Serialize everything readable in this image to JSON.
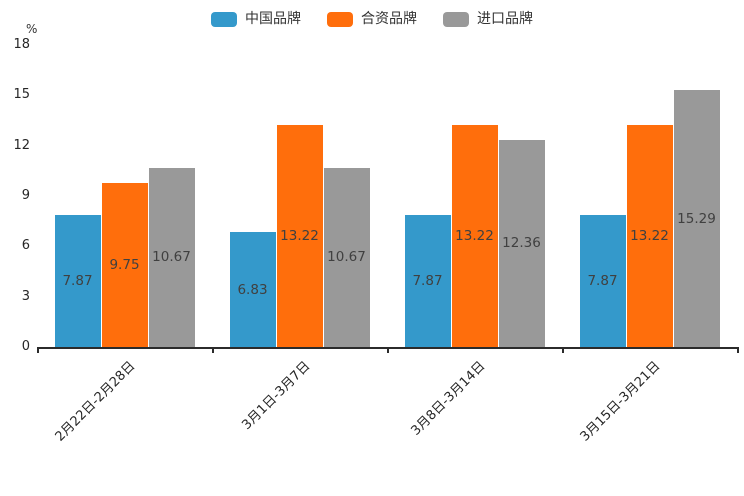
{
  "chart_data": {
    "type": "bar",
    "title": "",
    "unit": "%",
    "categories": [
      "2月22日-2月28日",
      "3月1日-3月7日",
      "3月8日-3月14日",
      "3月15日-3月21日"
    ],
    "series": [
      {
        "name": "中国品牌",
        "color": "#3499cb",
        "values": [
          7.87,
          6.83,
          7.87,
          7.87
        ]
      },
      {
        "name": "合资品牌",
        "color": "#ff6e0c",
        "values": [
          9.75,
          13.22,
          13.22,
          13.22
        ]
      },
      {
        "name": "进口品牌",
        "color": "#999999",
        "values": [
          10.67,
          10.67,
          12.36,
          15.29
        ]
      }
    ],
    "ylim": [
      0,
      18
    ],
    "yticks": [
      0,
      3,
      6,
      9,
      12,
      15,
      18
    ],
    "legend_position": "top-center",
    "grid": false,
    "value_label_position": "inside-center",
    "axis_color": "#2b2b2b",
    "text_color": "#262626",
    "value_label_color": "#404040"
  }
}
